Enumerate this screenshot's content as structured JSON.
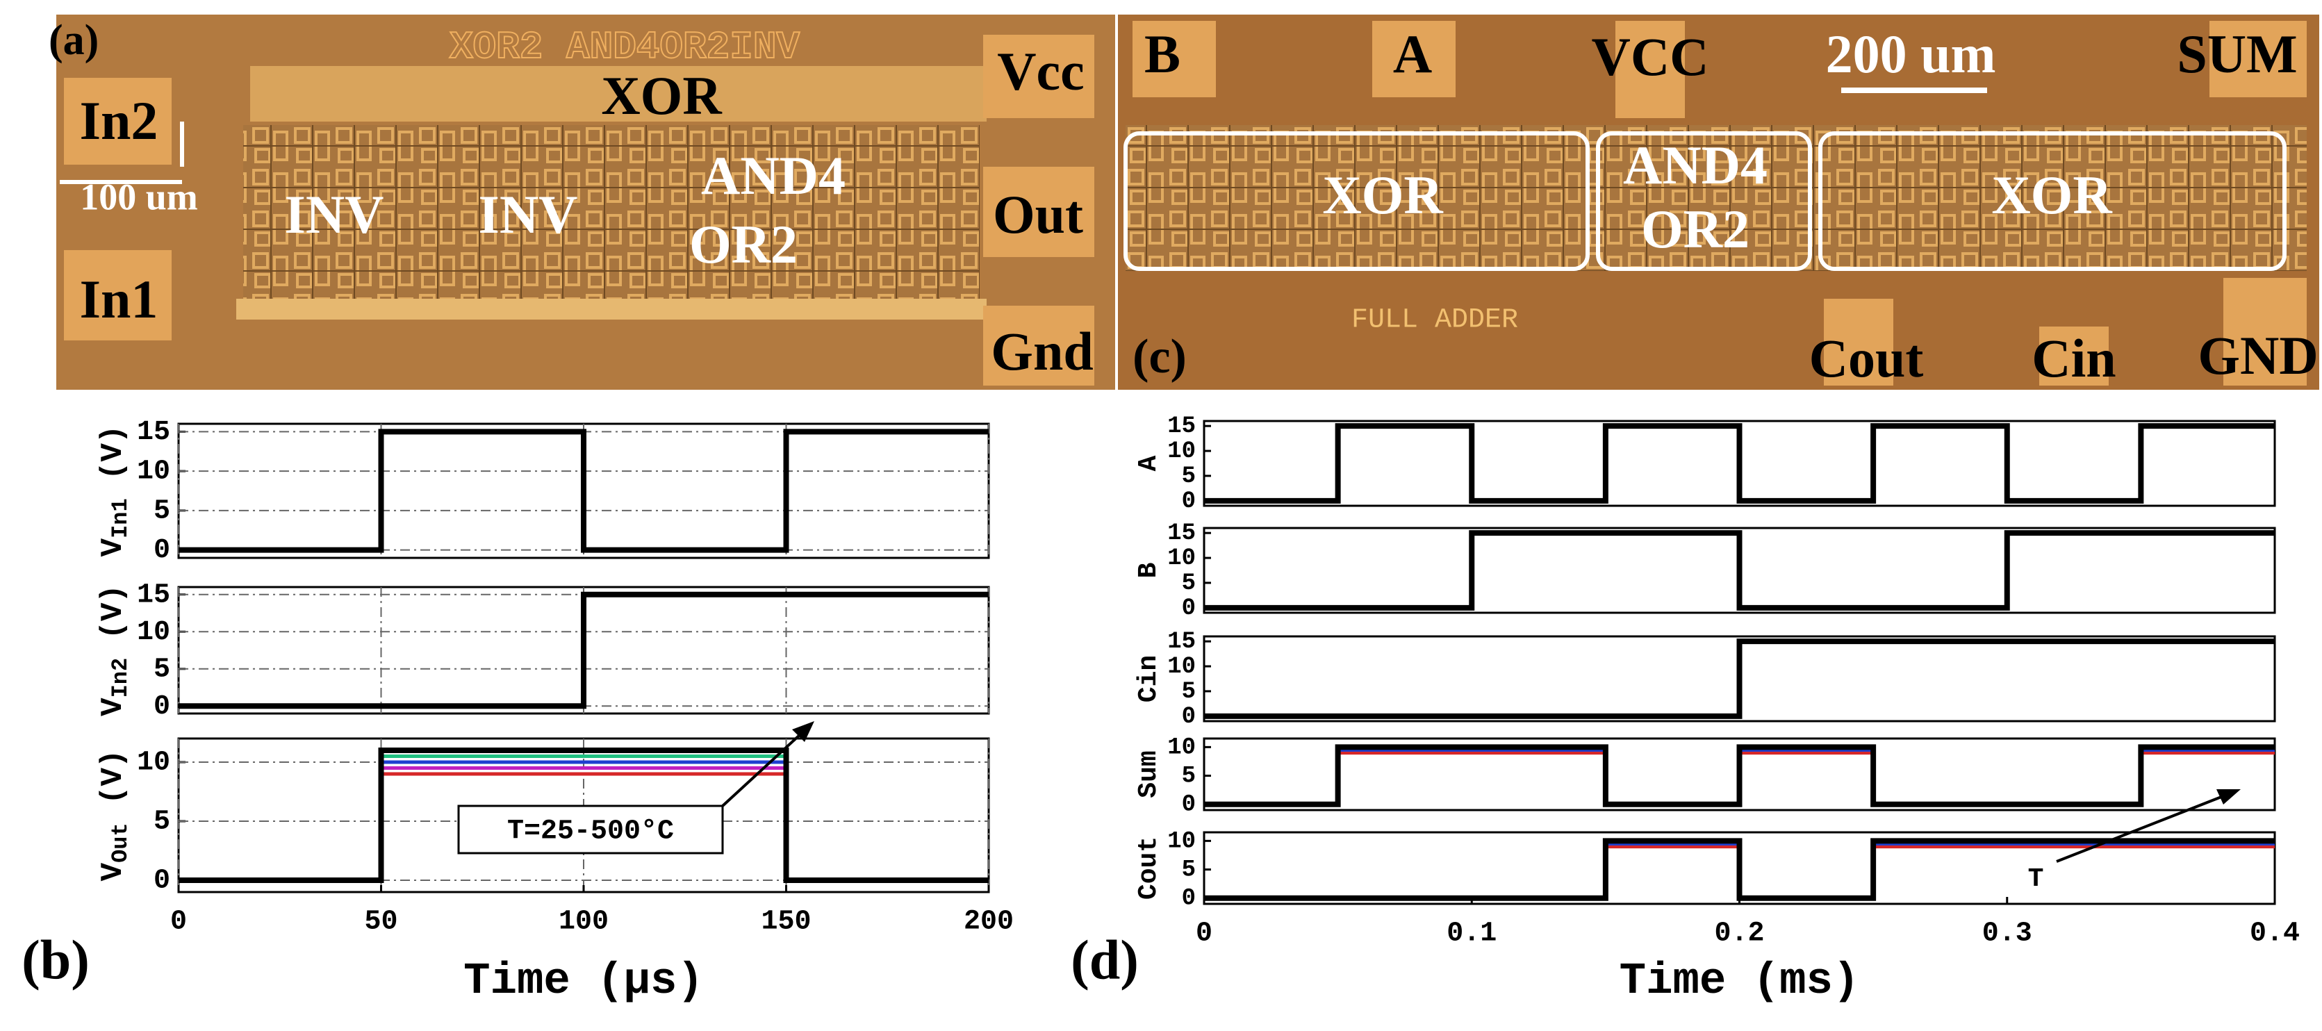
{
  "figure": {
    "panel_labels": [
      "(a)",
      "(b)",
      "(c)",
      "(d)"
    ]
  },
  "micrograph_a": {
    "labels": [
      "XOR2 AND4OR2INV",
      "XOR",
      "In2",
      "100 um",
      "INV",
      "INV",
      "AND4",
      "OR2",
      "In1",
      "Vcc",
      "Out",
      "Gnd"
    ]
  },
  "micrograph_c": {
    "labels": [
      "B",
      "A",
      "VCC",
      "200 um",
      "SUM",
      "XOR",
      "AND4",
      "OR2",
      "XOR",
      "FULL ADDER",
      "Cout",
      "Cin",
      "GND"
    ]
  },
  "chart_data": [
    {
      "type": "line",
      "ylabel": [
        "V",
        "In1",
        " (V)"
      ],
      "x": [
        0,
        50,
        50,
        100,
        100,
        150,
        150,
        200
      ],
      "series": [
        {
          "color": "#000000",
          "values": [
            0,
            0,
            15,
            15,
            0,
            0,
            15,
            15
          ]
        }
      ],
      "xlim": [
        0,
        200
      ],
      "ylim": [
        -1,
        16
      ],
      "yticks": [
        0,
        5,
        10,
        15
      ],
      "grid": true
    },
    {
      "type": "line",
      "ylabel": [
        "V",
        "In2",
        " (V)"
      ],
      "x": [
        0,
        100,
        100,
        200
      ],
      "series": [
        {
          "color": "#000000",
          "values": [
            0,
            0,
            15,
            15
          ]
        }
      ],
      "xlim": [
        0,
        200
      ],
      "ylim": [
        -1,
        16
      ],
      "yticks": [
        0,
        5,
        10,
        15
      ],
      "grid": true
    },
    {
      "type": "line",
      "ylabel": [
        "V",
        "Out",
        " (V)"
      ],
      "x": [
        0,
        50,
        50,
        150,
        150,
        200
      ],
      "series": [
        {
          "color": "#d62728",
          "values": [
            0,
            0,
            9,
            9,
            0,
            0
          ]
        },
        {
          "color": "#c020c0",
          "values": [
            0,
            0,
            9.5,
            9.5,
            0,
            0
          ]
        },
        {
          "color": "#1f3fd0",
          "values": [
            0,
            0,
            10,
            10,
            0,
            0
          ]
        },
        {
          "color": "#20c080",
          "values": [
            0,
            0,
            10.5,
            10.5,
            0,
            0
          ]
        },
        {
          "color": "#000000",
          "values": [
            0,
            0,
            11,
            11,
            0,
            0
          ]
        }
      ],
      "xlim": [
        0,
        200
      ],
      "ylim": [
        -1,
        12
      ],
      "yticks": [
        0,
        5,
        10
      ],
      "xticks": [
        0,
        50,
        100,
        150,
        200
      ],
      "xlabel": "Time (μs)",
      "annotation": "T=25-500°C",
      "grid": true
    },
    {
      "type": "line",
      "ylabel": [
        "A"
      ],
      "x": [
        0,
        0.05,
        0.05,
        0.1,
        0.1,
        0.15,
        0.15,
        0.2,
        0.2,
        0.25,
        0.25,
        0.3,
        0.3,
        0.35,
        0.35,
        0.4
      ],
      "series": [
        {
          "color": "#000000",
          "values": [
            0,
            0,
            15,
            15,
            0,
            0,
            15,
            15,
            0,
            0,
            15,
            15,
            0,
            0,
            15,
            15
          ]
        }
      ],
      "xlim": [
        0,
        0.4
      ],
      "ylim": [
        -1,
        16
      ],
      "yticks": [
        0,
        5,
        10,
        15
      ],
      "grid": false
    },
    {
      "type": "line",
      "ylabel": [
        "B"
      ],
      "x": [
        0,
        0.1,
        0.1,
        0.2,
        0.2,
        0.3,
        0.3,
        0.4
      ],
      "series": [
        {
          "color": "#000000",
          "values": [
            0,
            0,
            15,
            15,
            0,
            0,
            15,
            15
          ]
        }
      ],
      "xlim": [
        0,
        0.4
      ],
      "ylim": [
        -1,
        16
      ],
      "yticks": [
        0,
        5,
        10,
        15
      ],
      "grid": false
    },
    {
      "type": "line",
      "ylabel": [
        "Cin"
      ],
      "x": [
        0,
        0.2,
        0.2,
        0.4
      ],
      "series": [
        {
          "color": "#000000",
          "values": [
            0,
            0,
            15,
            15
          ]
        }
      ],
      "xlim": [
        0,
        0.4
      ],
      "ylim": [
        -1,
        16
      ],
      "yticks": [
        0,
        5,
        10,
        15
      ],
      "grid": false
    },
    {
      "type": "line",
      "ylabel": [
        "Sum"
      ],
      "x": [
        0,
        0.05,
        0.05,
        0.15,
        0.15,
        0.2,
        0.2,
        0.25,
        0.25,
        0.35,
        0.35,
        0.4
      ],
      "series": [
        {
          "color": "#d62728",
          "values": [
            0,
            0,
            9,
            9,
            0,
            0,
            9,
            9,
            0,
            0,
            9,
            9
          ]
        },
        {
          "color": "#1f3fd0",
          "values": [
            0,
            0,
            9.5,
            9.5,
            0,
            0,
            9.5,
            9.5,
            0,
            0,
            9.5,
            9.5
          ]
        },
        {
          "color": "#000000",
          "values": [
            0,
            0,
            10,
            10,
            0,
            0,
            10,
            10,
            0,
            0,
            10,
            10
          ]
        }
      ],
      "xlim": [
        0,
        0.4
      ],
      "ylim": [
        -1,
        11.5
      ],
      "yticks": [
        0,
        5,
        10
      ],
      "grid": false
    },
    {
      "type": "line",
      "ylabel": [
        "Cout"
      ],
      "x": [
        0,
        0.15,
        0.15,
        0.2,
        0.2,
        0.25,
        0.25,
        0.4
      ],
      "series": [
        {
          "color": "#d62728",
          "values": [
            0,
            0,
            9,
            9,
            0,
            0,
            9,
            9
          ]
        },
        {
          "color": "#1f3fd0",
          "values": [
            0,
            0,
            9.5,
            9.5,
            0,
            0,
            9.5,
            9.5
          ]
        },
        {
          "color": "#000000",
          "values": [
            0,
            0,
            10,
            10,
            0,
            0,
            10,
            10
          ]
        }
      ],
      "xlim": [
        0,
        0.4
      ],
      "ylim": [
        -1,
        11.5
      ],
      "yticks": [
        0,
        5,
        10
      ],
      "xticks": [
        0,
        0.1,
        0.2,
        0.3,
        0.4
      ],
      "xlabel": "Time (ms)",
      "annotation": "T",
      "grid": false
    }
  ]
}
